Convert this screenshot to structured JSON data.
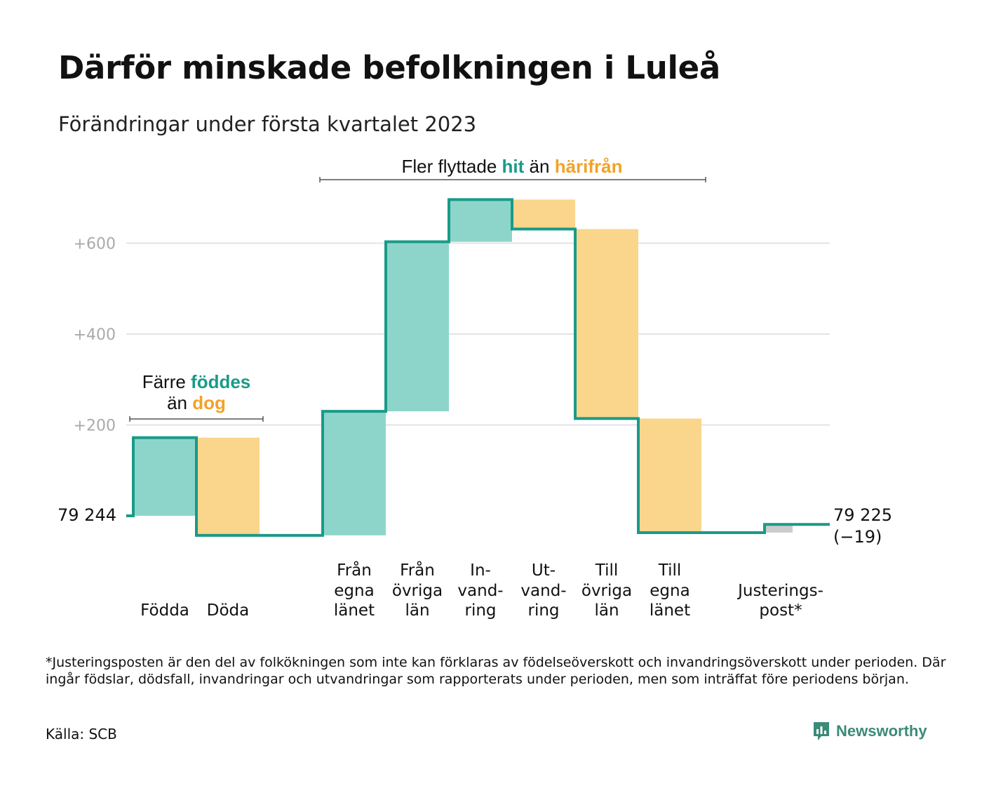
{
  "title": "Därför minskade befolkningen i Luleå",
  "subtitle": "Förändringar under första kvartalet 2023",
  "annotations": {
    "migration": {
      "pre": "Fler flyttade ",
      "hit": "hit",
      "mid": " än ",
      "away": "härifrån"
    },
    "births": {
      "line1_pre": "Färre ",
      "line1_hit": "föddes",
      "line2_pre": "än ",
      "line2_away": "dog"
    }
  },
  "colors": {
    "positive": "#8dd5cb",
    "negative": "#fad58c",
    "adjustment": "#cccccc",
    "line": "#1a9a88",
    "grid": "#e3e3e3"
  },
  "chart_data": {
    "type": "waterfall",
    "title": "Därför minskade befolkningen i Luleå",
    "subtitle": "Förändringar under första kvartalet 2023",
    "start": {
      "label": "79 244",
      "value": 79244
    },
    "end": {
      "label_line1": "79 225",
      "label_line2": "(−19)",
      "value": 79225,
      "change": -19
    },
    "yticks": [
      {
        "value": 200,
        "label": "+200"
      },
      {
        "value": 400,
        "label": "+400"
      },
      {
        "value": 600,
        "label": "+600"
      }
    ],
    "ylim": [
      -60,
      700
    ],
    "steps": [
      {
        "label": [
          "",
          "",
          "Födda"
        ],
        "change": 172,
        "kind": "positive"
      },
      {
        "label": [
          "",
          "",
          "Döda"
        ],
        "change": -215,
        "kind": "negative"
      },
      {
        "label": [
          "Från",
          "egna",
          "länet"
        ],
        "change": 273,
        "kind": "positive"
      },
      {
        "label": [
          "Från",
          "övriga",
          "län"
        ],
        "change": 373,
        "kind": "positive"
      },
      {
        "label": [
          "In-",
          "vand-",
          "ring"
        ],
        "change": 93,
        "kind": "positive"
      },
      {
        "label": [
          "Ut-",
          "vand-",
          "ring"
        ],
        "change": -65,
        "kind": "negative"
      },
      {
        "label": [
          "Till",
          "övriga",
          "län"
        ],
        "change": -417,
        "kind": "negative"
      },
      {
        "label": [
          "Till",
          "egna",
          "länet"
        ],
        "change": -251,
        "kind": "negative"
      },
      {
        "label": [
          "",
          "Justerings-",
          "post*"
        ],
        "change": 18,
        "kind": "adjustment"
      }
    ]
  },
  "footnote": "*Justeringsposten är den del av folkökningen som inte kan förklaras av födelseöverskott och invandringsöverskott under perioden. Där ingår födslar, dödsfall, invandringar och utvandringar som rapporterats under perioden, men som inträffat före periodens början.",
  "source": "Källa: SCB",
  "brand": {
    "name": "Newsworthy",
    "icon": "newsworthy-logo-icon"
  }
}
